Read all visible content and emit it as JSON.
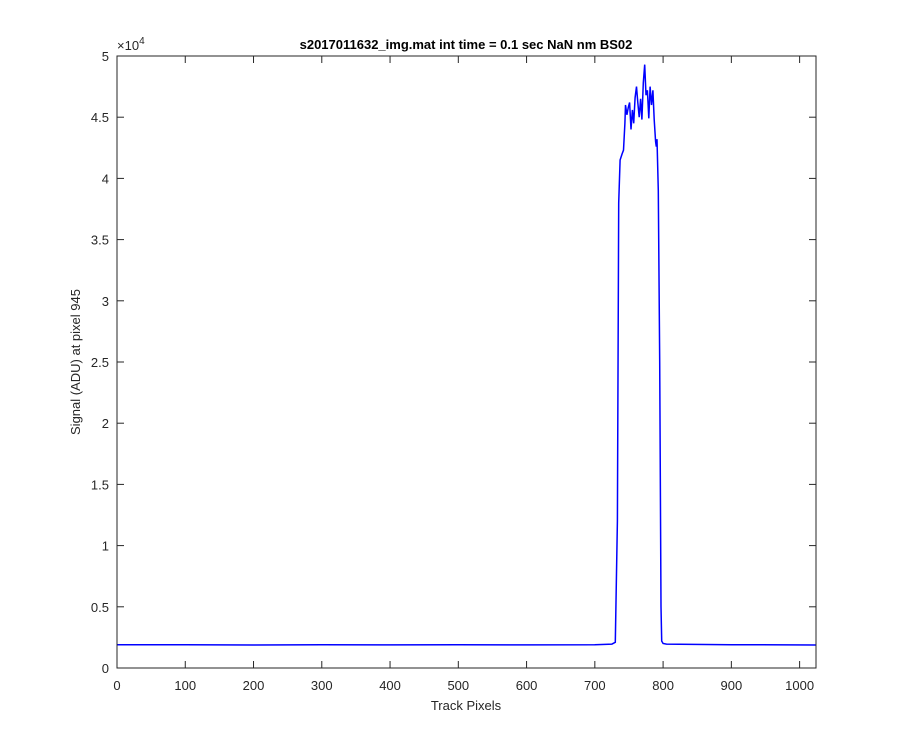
{
  "chart_data": {
    "type": "line",
    "title": "s2017011632_img.mat int time = 0.1 sec  NaN nm BS02",
    "xlabel": "Track Pixels",
    "ylabel": "Signal (ADU) at pixel 945",
    "xlim": [
      0,
      1024
    ],
    "ylim": [
      0,
      50000
    ],
    "x_ticks": [
      "0",
      "100",
      "200",
      "300",
      "400",
      "500",
      "600",
      "700",
      "800",
      "900",
      "1000"
    ],
    "x_tick_values": [
      0,
      100,
      200,
      300,
      400,
      500,
      600,
      700,
      800,
      900,
      1000
    ],
    "y_ticks": [
      "0",
      "0.5",
      "1",
      "1.5",
      "2",
      "2.5",
      "3",
      "3.5",
      "4",
      "4.5",
      "5"
    ],
    "y_tick_values": [
      0,
      5000,
      10000,
      15000,
      20000,
      25000,
      30000,
      35000,
      40000,
      45000,
      50000
    ],
    "y_exponent_label": "×10",
    "y_exponent_power": "4",
    "grid": false,
    "line_color": "#0000ff",
    "series": [
      {
        "x": [
          0,
          100,
          200,
          300,
          400,
          500,
          600,
          700,
          725,
          730,
          733,
          735,
          737,
          740,
          742,
          744,
          745,
          747,
          749,
          751,
          753,
          755,
          757,
          759,
          761,
          763,
          765,
          767,
          769,
          771,
          773,
          775,
          777,
          779,
          781,
          783,
          785,
          787,
          789,
          790,
          791,
          793,
          795,
          797,
          798,
          800,
          805,
          900,
          1024
        ],
        "y": [
          1900,
          1900,
          1880,
          1900,
          1890,
          1900,
          1890,
          1900,
          1950,
          2100,
          12000,
          38000,
          41500,
          42000,
          42300,
          44500,
          46000,
          45200,
          45800,
          46200,
          44000,
          45600,
          44500,
          46600,
          47500,
          46200,
          45000,
          46500,
          44800,
          47800,
          49300,
          46800,
          47200,
          44900,
          47500,
          46000,
          47200,
          44800,
          43000,
          42600,
          43200,
          39000,
          25000,
          5000,
          2200,
          2000,
          1950,
          1900,
          1880
        ]
      }
    ]
  }
}
